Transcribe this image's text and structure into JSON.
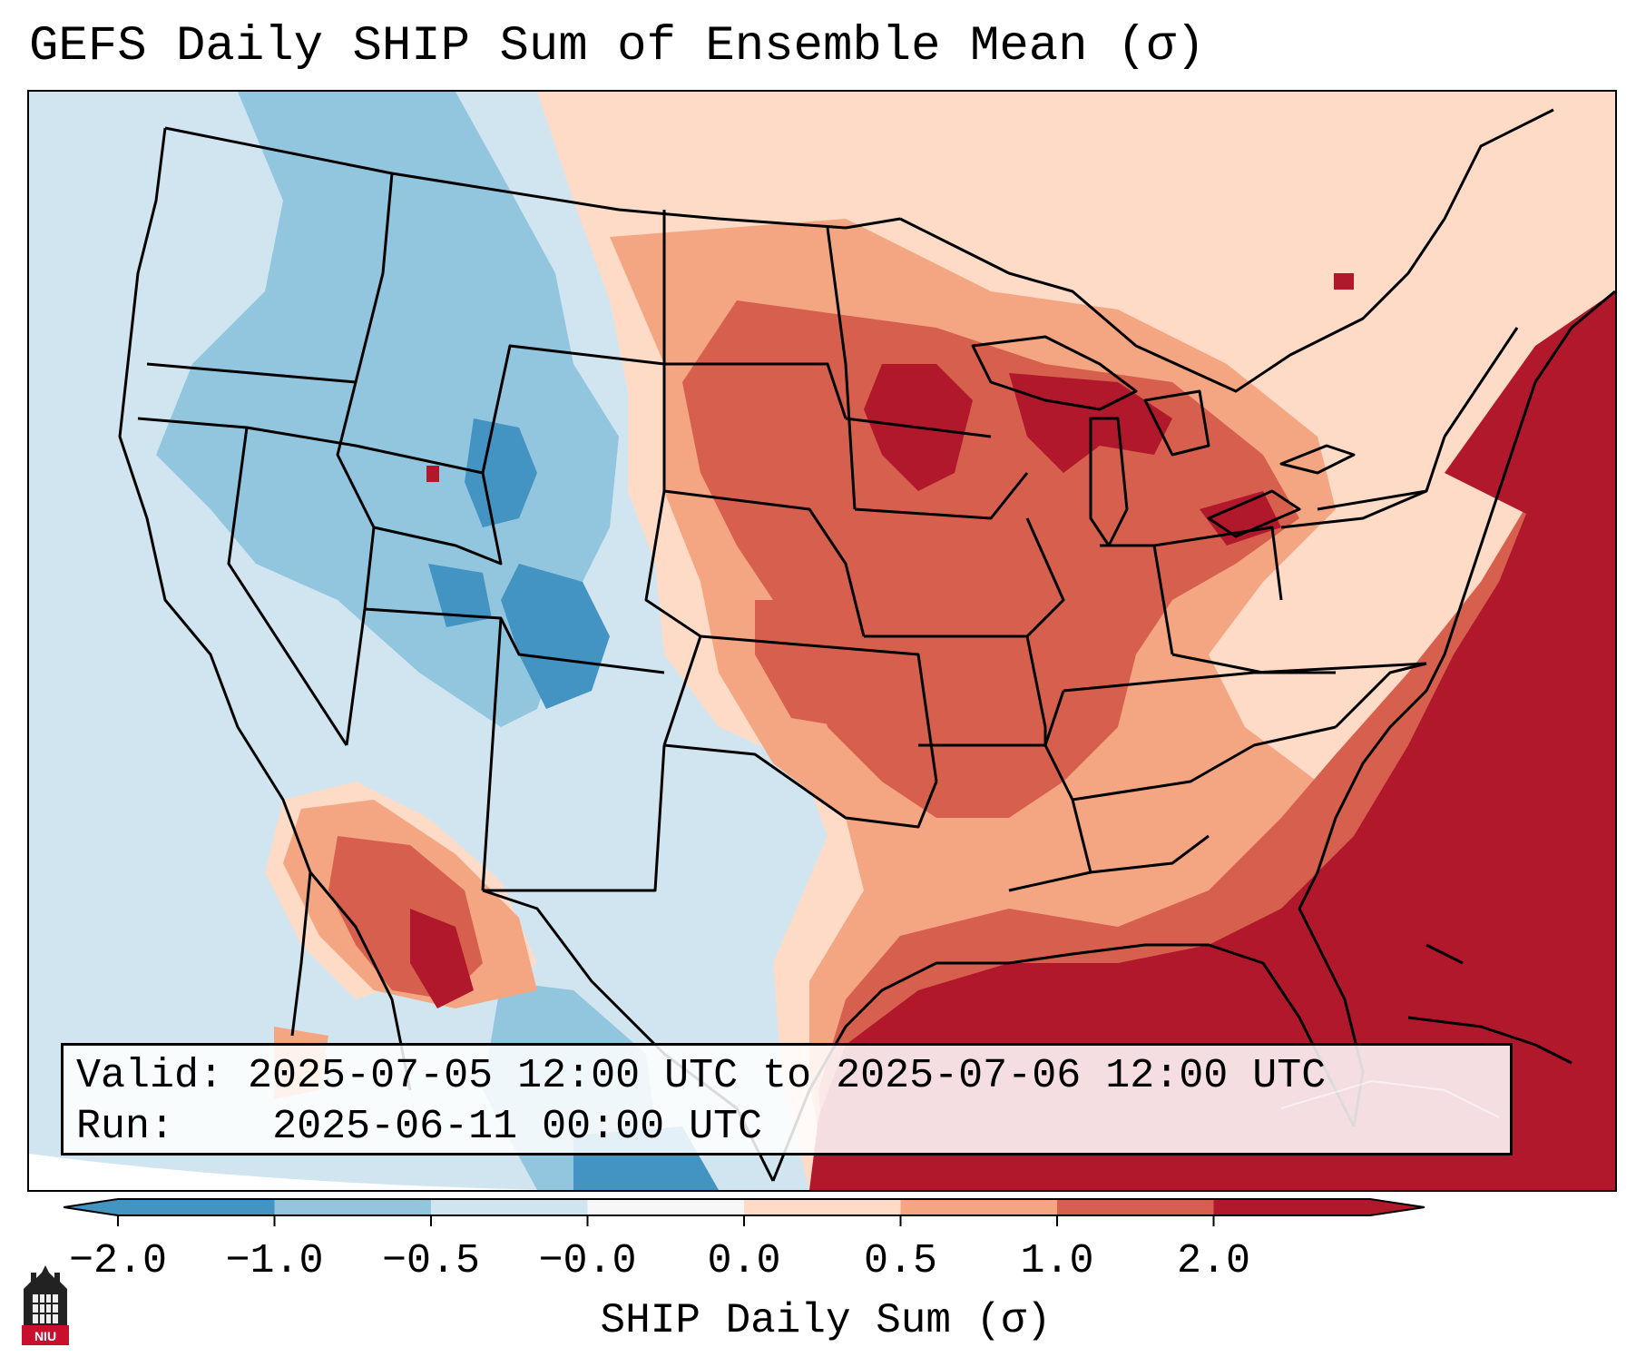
{
  "title": "GEFS Daily SHIP Sum of Ensemble Mean (σ)",
  "info": {
    "valid_label": "Valid:",
    "valid_range": "2025-07-05 12:00 UTC to 2025-07-06 12:00 UTC",
    "run_label": "Run:",
    "run_time": "2025-06-11 00:00 UTC"
  },
  "colorbar": {
    "label": "SHIP Daily Sum (σ)",
    "ticks": [
      "−2.0",
      "−1.0",
      "−0.5",
      "−0.0",
      "0.0",
      "0.5",
      "1.0",
      "2.0"
    ],
    "levels": [
      -2.0,
      -1.0,
      -0.5,
      -0.0,
      0.0,
      0.5,
      1.0,
      2.0
    ],
    "colors": [
      "#4393c3",
      "#92c5de",
      "#d1e5f0",
      "#f7f7f7",
      "#fddbc7",
      "#f4a582",
      "#d6604d",
      "#b2182b"
    ],
    "extend": "both"
  },
  "logo": {
    "text": "NIU"
  },
  "colors": {
    "strong_negative": "#4393c3",
    "negative": "#92c5de",
    "weak_negative": "#d1e5f0",
    "neutral": "#f7f7f7",
    "weak_positive": "#fddbc7",
    "positive": "#f4a582",
    "strong_positive": "#d6604d",
    "extreme_positive": "#b2182b"
  }
}
